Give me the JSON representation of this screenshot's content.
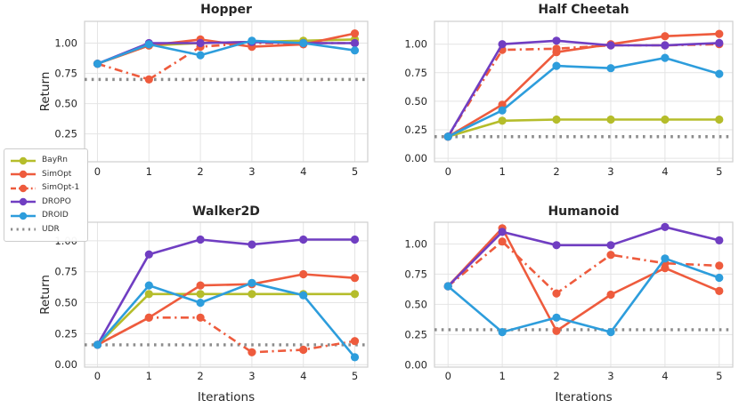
{
  "figure": {
    "xlabel": "Iterations",
    "ylabel": "Return"
  },
  "colors": {
    "bayrn": "#b5bd2b",
    "simopt": "#ee5b3d",
    "dropo": "#703ec2",
    "droid": "#2d9ddc",
    "udr": "#8c8c8c",
    "grid": "#e4e4e4",
    "spine": "#cfcfcf",
    "text": "#262626"
  },
  "legend": {
    "items": [
      {
        "label": "BayRn",
        "color": "#b5bd2b",
        "style": "solid",
        "marker": true
      },
      {
        "label": "SimOpt",
        "color": "#ee5b3d",
        "style": "solid",
        "marker": true
      },
      {
        "label": "SimOpt-1",
        "color": "#ee5b3d",
        "style": "dashdot",
        "marker": true
      },
      {
        "label": "DROPO",
        "color": "#703ec2",
        "style": "solid",
        "marker": true
      },
      {
        "label": "DROID",
        "color": "#2d9ddc",
        "style": "solid",
        "marker": true
      },
      {
        "label": "UDR",
        "color": "#8c8c8c",
        "style": "dotted",
        "marker": false
      }
    ]
  },
  "chart_data": [
    {
      "type": "line",
      "title": "Hopper",
      "ylabel": "Return",
      "xlabel": "",
      "x": [
        0,
        1,
        2,
        3,
        4,
        5
      ],
      "xlim": [
        -0.25,
        5.25
      ],
      "ylim": [
        0.02,
        1.18
      ],
      "yticks": [
        0.25,
        0.5,
        0.75,
        1.0
      ],
      "baseline": {
        "name": "UDR",
        "value": 0.7
      },
      "series": [
        {
          "name": "BayRn",
          "style": "solid",
          "color": "#b5bd2b",
          "values": [
            0.83,
            0.98,
            1.0,
            1.01,
            1.02,
            1.03
          ]
        },
        {
          "name": "SimOpt",
          "style": "solid",
          "color": "#ee5b3d",
          "values": [
            0.83,
            0.98,
            1.03,
            0.97,
            0.99,
            1.08
          ]
        },
        {
          "name": "SimOpt-1",
          "style": "dashdot",
          "color": "#ee5b3d",
          "values": [
            0.83,
            0.7,
            0.97,
            1.0,
            1.0,
            1.0
          ]
        },
        {
          "name": "DROPO",
          "style": "solid",
          "color": "#703ec2",
          "values": [
            0.83,
            1.0,
            1.0,
            1.01,
            1.0,
            1.0
          ]
        },
        {
          "name": "DROID",
          "style": "solid",
          "color": "#2d9ddc",
          "values": [
            0.83,
            0.99,
            0.9,
            1.02,
            1.0,
            0.94
          ]
        }
      ]
    },
    {
      "type": "line",
      "title": "Half Cheetah",
      "ylabel": "",
      "xlabel": "",
      "x": [
        0,
        1,
        2,
        3,
        4,
        5
      ],
      "xlim": [
        -0.25,
        5.25
      ],
      "ylim": [
        -0.03,
        1.2
      ],
      "yticks": [
        0.0,
        0.25,
        0.5,
        0.75,
        1.0
      ],
      "baseline": {
        "name": "UDR",
        "value": 0.19
      },
      "series": [
        {
          "name": "BayRn",
          "style": "solid",
          "color": "#b5bd2b",
          "values": [
            0.19,
            0.33,
            0.34,
            0.34,
            0.34,
            0.34
          ]
        },
        {
          "name": "SimOpt",
          "style": "solid",
          "color": "#ee5b3d",
          "values": [
            0.19,
            0.47,
            0.93,
            1.0,
            1.07,
            1.09
          ]
        },
        {
          "name": "SimOpt-1",
          "style": "dashdot",
          "color": "#ee5b3d",
          "values": [
            0.19,
            0.95,
            0.96,
            0.99,
            0.99,
            1.0
          ]
        },
        {
          "name": "DROPO",
          "style": "solid",
          "color": "#703ec2",
          "values": [
            0.19,
            1.0,
            1.03,
            0.99,
            0.99,
            1.01
          ]
        },
        {
          "name": "DROID",
          "style": "solid",
          "color": "#2d9ddc",
          "values": [
            0.19,
            0.42,
            0.81,
            0.79,
            0.88,
            0.74
          ]
        }
      ]
    },
    {
      "type": "line",
      "title": "Walker2D",
      "ylabel": "Return",
      "xlabel": "Iterations",
      "x": [
        0,
        1,
        2,
        3,
        4,
        5
      ],
      "xlim": [
        -0.25,
        5.25
      ],
      "ylim": [
        -0.02,
        1.15
      ],
      "yticks": [
        0.0,
        0.25,
        0.5,
        0.75,
        1.0
      ],
      "baseline": {
        "name": "UDR",
        "value": 0.16
      },
      "series": [
        {
          "name": "BayRn",
          "style": "solid",
          "color": "#b5bd2b",
          "values": [
            0.16,
            0.57,
            0.57,
            0.57,
            0.57,
            0.57
          ]
        },
        {
          "name": "SimOpt",
          "style": "solid",
          "color": "#ee5b3d",
          "values": [
            0.16,
            0.38,
            0.64,
            0.65,
            0.73,
            0.7
          ]
        },
        {
          "name": "SimOpt-1",
          "style": "dashdot",
          "color": "#ee5b3d",
          "values": [
            0.16,
            0.38,
            0.38,
            0.1,
            0.12,
            0.19
          ]
        },
        {
          "name": "DROPO",
          "style": "solid",
          "color": "#703ec2",
          "values": [
            0.16,
            0.89,
            1.01,
            0.97,
            1.01,
            1.01
          ]
        },
        {
          "name": "DROID",
          "style": "solid",
          "color": "#2d9ddc",
          "values": [
            0.16,
            0.64,
            0.5,
            0.66,
            0.56,
            0.06
          ]
        }
      ]
    },
    {
      "type": "line",
      "title": "Humanoid",
      "ylabel": "",
      "xlabel": "Iterations",
      "x": [
        0,
        1,
        2,
        3,
        4,
        5
      ],
      "xlim": [
        -0.25,
        5.25
      ],
      "ylim": [
        -0.02,
        1.18
      ],
      "yticks": [
        0.0,
        0.25,
        0.5,
        0.75,
        1.0
      ],
      "baseline": {
        "name": "UDR",
        "value": 0.29
      },
      "series": [
        {
          "name": "SimOpt",
          "style": "solid",
          "color": "#ee5b3d",
          "values": [
            0.65,
            1.13,
            0.28,
            0.58,
            0.8,
            0.61
          ]
        },
        {
          "name": "SimOpt-1",
          "style": "dashdot",
          "color": "#ee5b3d",
          "values": [
            0.65,
            1.02,
            0.59,
            0.91,
            0.84,
            0.82
          ]
        },
        {
          "name": "DROPO",
          "style": "solid",
          "color": "#703ec2",
          "values": [
            0.65,
            1.1,
            0.99,
            0.99,
            1.14,
            1.03
          ]
        },
        {
          "name": "DROID",
          "style": "solid",
          "color": "#2d9ddc",
          "values": [
            0.65,
            0.27,
            0.39,
            0.27,
            0.88,
            0.72
          ]
        }
      ]
    }
  ]
}
